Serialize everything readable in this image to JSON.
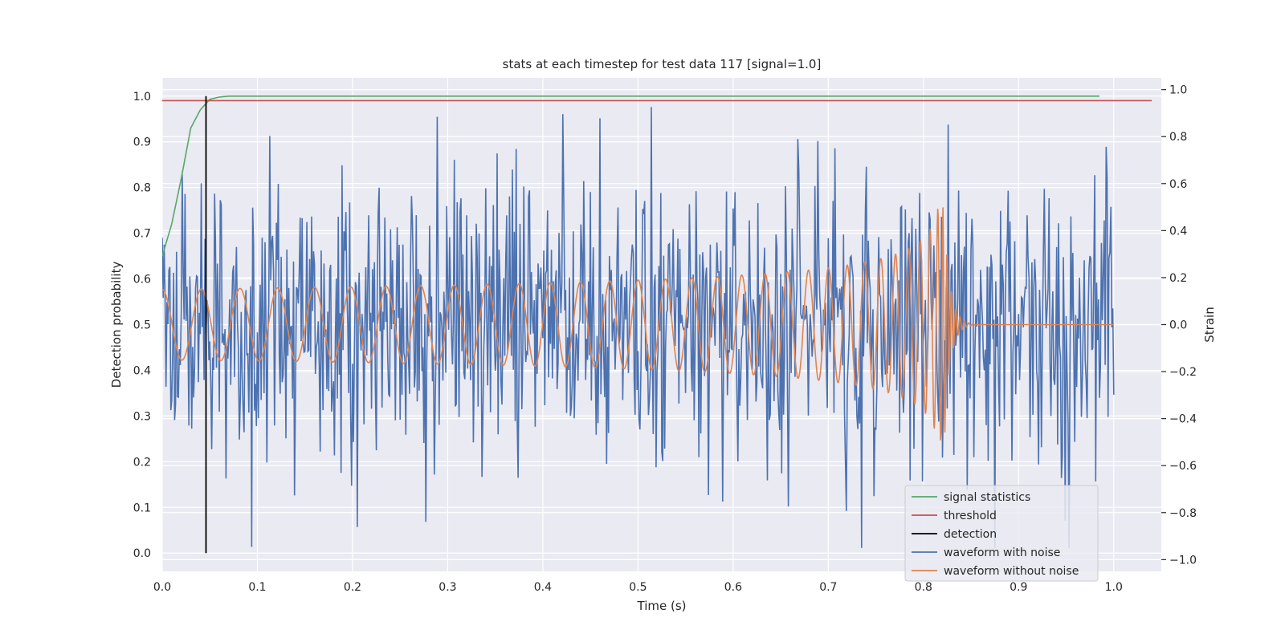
{
  "chart_data": {
    "type": "line",
    "title": "stats at each timestep for test data 117 [signal=1.0]",
    "xlabel": "Time (s)",
    "ylabel": "Detection probability",
    "ylabel_right": "Strain",
    "xlim": [
      0.0,
      1.05
    ],
    "ylim": [
      -0.04,
      1.04
    ],
    "ylim_right": [
      -1.05,
      1.05
    ],
    "x_ticks": [
      0.0,
      0.1,
      0.2,
      0.3,
      0.4,
      0.5,
      0.6,
      0.7,
      0.8,
      0.9,
      1.0
    ],
    "x_tick_labels": [
      "0.0",
      "0.1",
      "0.2",
      "0.3",
      "0.4",
      "0.5",
      "0.6",
      "0.7",
      "0.8",
      "0.9",
      "1.0"
    ],
    "y_ticks": [
      0.0,
      0.1,
      0.2,
      0.3,
      0.4,
      0.5,
      0.6,
      0.7,
      0.8,
      0.9,
      1.0
    ],
    "y_tick_labels": [
      "0.0",
      "0.1",
      "0.2",
      "0.3",
      "0.4",
      "0.5",
      "0.6",
      "0.7",
      "0.8",
      "0.9",
      "1.0"
    ],
    "y_right_ticks": [
      -1.0,
      -0.8,
      -0.6,
      -0.4,
      -0.2,
      0.0,
      0.2,
      0.4,
      0.6,
      0.8,
      1.0
    ],
    "y_right_tick_labels": [
      "−1.0",
      "−0.8",
      "−0.6",
      "−0.4",
      "−0.2",
      "0.0",
      "0.2",
      "0.4",
      "0.6",
      "0.8",
      "1.0"
    ],
    "grid": true,
    "legend_position": "lower-right",
    "colors": {
      "background": "#eaeaf2",
      "grid": "#ffffff",
      "signal_statistics": "#55a868",
      "threshold": "#c44e52",
      "detection": "#000000",
      "waveform_with_noise": "#4c72b0",
      "waveform_without_noise": "#dd8452"
    },
    "legend": [
      "signal statistics",
      "threshold",
      "detection",
      "waveform with noise",
      "waveform without noise"
    ],
    "signal_statistics": {
      "name": "signal statistics",
      "x": [
        0.0,
        0.01,
        0.02,
        0.03,
        0.04,
        0.05,
        0.06,
        0.07,
        0.08,
        0.1,
        0.2,
        0.4,
        0.6,
        0.8,
        0.985
      ],
      "y": [
        0.65,
        0.72,
        0.82,
        0.93,
        0.97,
        0.993,
        0.998,
        1.0,
        1.0,
        1.0,
        1.0,
        1.0,
        1.0,
        1.0,
        1.0
      ]
    },
    "threshold": {
      "name": "threshold",
      "y": 0.99,
      "x_range": [
        0.0,
        1.04
      ]
    },
    "detection": {
      "name": "detection",
      "x": 0.046,
      "y_range": [
        0.0,
        1.0
      ]
    },
    "waveform_with_noise": {
      "name": "waveform with noise",
      "axis": "right",
      "x_range": [
        0.0,
        1.0
      ],
      "points": 1000,
      "amplitude_range": [
        -0.95,
        1.0
      ]
    },
    "waveform_without_noise": {
      "name": "waveform without noise",
      "axis": "right",
      "x_range": [
        0.0,
        1.0
      ],
      "points": 2000,
      "amplitude_base": 0.15,
      "peak_amplitude": 0.5,
      "merger_time": 0.822
    }
  }
}
